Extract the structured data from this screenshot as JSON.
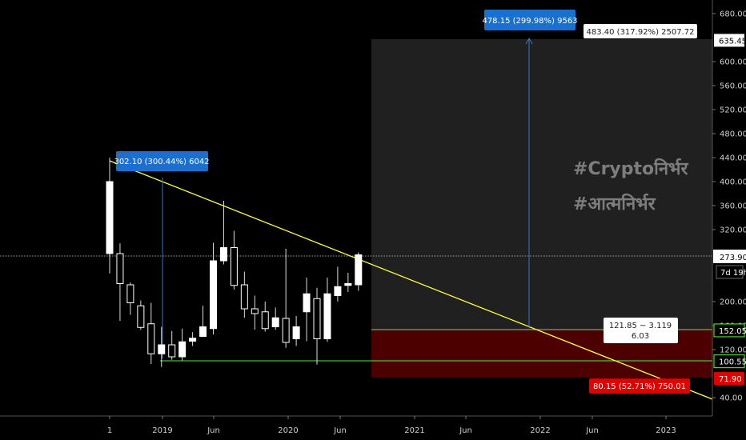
{
  "chart_data": {
    "type": "candlestick",
    "x_ticks": [
      "1",
      "2019",
      "Jun",
      "2020",
      "Jun",
      "2021",
      "Jun",
      "2022",
      "Jun",
      "2023"
    ],
    "y_ticks": [
      "680.00",
      "600.00",
      "560.00",
      "520.00",
      "480.00",
      "440.00",
      "400.00",
      "360.00",
      "320.00",
      "200.00",
      "160.00",
      "120.00",
      "40.00"
    ],
    "ylim": [
      20,
      700
    ],
    "candles": [
      {
        "o": 280,
        "h": 440,
        "l": 247,
        "c": 400
      },
      {
        "o": 280,
        "h": 297,
        "l": 168,
        "c": 230
      },
      {
        "o": 228,
        "h": 232,
        "l": 178,
        "c": 198
      },
      {
        "o": 193,
        "h": 202,
        "l": 153,
        "c": 157
      },
      {
        "o": 163,
        "h": 198,
        "l": 96,
        "c": 113
      },
      {
        "o": 113,
        "h": 158,
        "l": 91,
        "c": 128
      },
      {
        "o": 128,
        "h": 151,
        "l": 103,
        "c": 108
      },
      {
        "o": 108,
        "h": 155,
        "l": 102,
        "c": 133
      },
      {
        "o": 134,
        "h": 149,
        "l": 126,
        "c": 139
      },
      {
        "o": 142,
        "h": 193,
        "l": 141,
        "c": 158
      },
      {
        "o": 155,
        "h": 298,
        "l": 145,
        "c": 268
      },
      {
        "o": 268,
        "h": 368,
        "l": 262,
        "c": 290
      },
      {
        "o": 290,
        "h": 318,
        "l": 220,
        "c": 227
      },
      {
        "o": 228,
        "h": 250,
        "l": 173,
        "c": 188
      },
      {
        "o": 188,
        "h": 210,
        "l": 153,
        "c": 180
      },
      {
        "o": 183,
        "h": 200,
        "l": 150,
        "c": 155
      },
      {
        "o": 158,
        "h": 190,
        "l": 153,
        "c": 173
      },
      {
        "o": 172,
        "h": 288,
        "l": 123,
        "c": 132
      },
      {
        "o": 138,
        "h": 176,
        "l": 126,
        "c": 158
      },
      {
        "o": 183,
        "h": 240,
        "l": 134,
        "c": 213
      },
      {
        "o": 205,
        "h": 223,
        "l": 95,
        "c": 138
      },
      {
        "o": 138,
        "h": 240,
        "l": 133,
        "c": 213
      },
      {
        "o": 210,
        "h": 258,
        "l": 200,
        "c": 225
      },
      {
        "o": 227,
        "h": 248,
        "l": 216,
        "c": 230
      },
      {
        "o": 228,
        "h": 282,
        "l": 218,
        "c": 278
      }
    ],
    "current_price": "273.90",
    "countdown": "7d 19h",
    "price_labels": [
      {
        "text": "635.45",
        "value": 635.45,
        "style": "white"
      },
      {
        "text": "152.05",
        "value": 152.05,
        "style": "green"
      },
      {
        "text": "100.55",
        "value": 100.55,
        "style": "green"
      },
      {
        "text": "71.90",
        "value": 71.9,
        "style": "red"
      }
    ],
    "annotations": {
      "measure_top": "478.15 (299.98%) 9563",
      "measure_left": "302.10 (300.44%) 6042",
      "target_label": "483.40 (317.92%) 2507.72",
      "ratio_line1": "121.85 ~ 3.119",
      "ratio_line2": "6.03",
      "stop_label": "80.15 (52.71%) 750.01"
    },
    "watermark": [
      "#Cryptoनिर्भर",
      "#आत्मनिर्भर"
    ],
    "colors": {
      "bg": "#000000",
      "candle": "#ffffff",
      "trendline": "#ffff40",
      "support": "#5ee64c",
      "target_zone": "#202020",
      "stop_zone": "#4d0000",
      "measure_line": "#3a79c2",
      "label_blue": "#1b6fcf",
      "label_red": "#e00000",
      "label_green": "#4bd62b"
    }
  }
}
